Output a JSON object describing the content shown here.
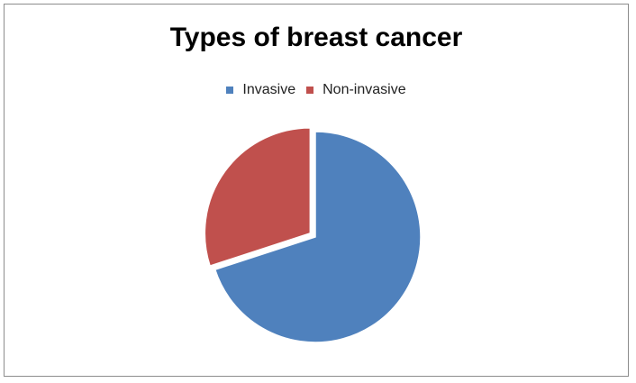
{
  "chart_data": {
    "type": "pie",
    "title": "Types of breast cancer",
    "legend_position": "top",
    "categories": [
      "Invasive",
      "Non-invasive"
    ],
    "values": [
      70,
      30
    ],
    "colors": [
      "#4f81bd",
      "#c0504d"
    ],
    "exploded": [
      "",
      "Non-invasive"
    ]
  }
}
